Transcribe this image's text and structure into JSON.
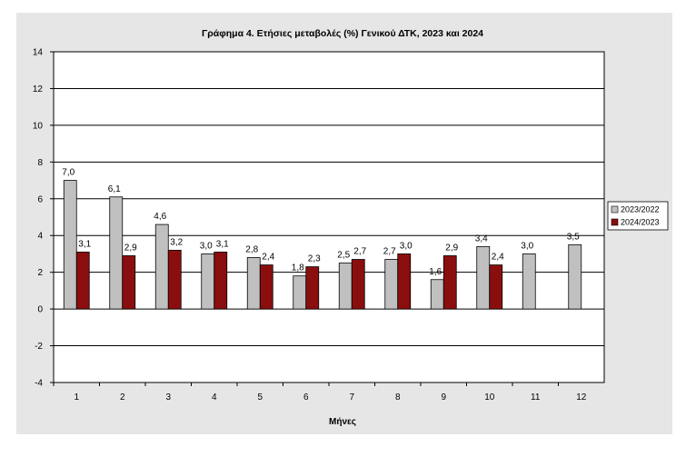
{
  "chart_data": {
    "type": "bar",
    "title": "Γράφημα 4. Ετήσιες μεταβολές (%) Γενικού ΔΤΚ, 2023 και 2024",
    "xlabel": "Μήνες",
    "ylabel": "",
    "ylim": [
      -4,
      14
    ],
    "yticks": [
      -4,
      -2,
      0,
      2,
      4,
      6,
      8,
      10,
      12,
      14
    ],
    "grid": true,
    "legend_position": "right",
    "categories": [
      "1",
      "2",
      "3",
      "4",
      "5",
      "6",
      "7",
      "8",
      "9",
      "10",
      "11",
      "12"
    ],
    "series": [
      {
        "name": "2023/2022",
        "color": "#c0c0c0",
        "values": [
          7.0,
          6.1,
          4.6,
          3.0,
          2.8,
          1.8,
          2.5,
          2.7,
          1.6,
          3.4,
          3.0,
          3.5
        ],
        "labels": [
          "7,0",
          "6,1",
          "4,6",
          "3,0",
          "2,8",
          "1,8",
          "2,5",
          "2,7",
          "1,6",
          "3,4",
          "3,0",
          "3,5"
        ]
      },
      {
        "name": "2024/2023",
        "color": "#8b0e0e",
        "values": [
          3.1,
          2.9,
          3.2,
          3.1,
          2.4,
          2.3,
          2.7,
          3.0,
          2.9,
          2.4,
          null,
          null
        ],
        "labels": [
          "3,1",
          "2,9",
          "3,2",
          "3,1",
          "2,4",
          "2,3",
          "2,7",
          "3,0",
          "2,9",
          "2,4",
          "",
          ""
        ]
      }
    ],
    "colors": {
      "outer_background": "#e6e6e6",
      "plot_background": "#ffffff"
    }
  }
}
